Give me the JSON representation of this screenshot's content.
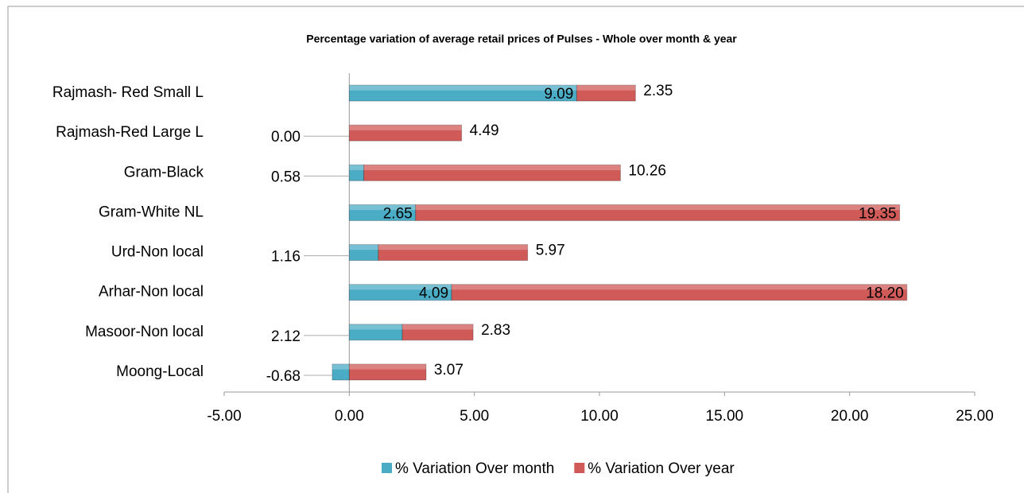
{
  "chart_data": {
    "type": "stacked-barh",
    "title": "Percentage variation  of average retail prices of Pulses - Whole over month & year",
    "categories": [
      "Rajmash- Red Small L",
      "Rajmash-Red Large L",
      "Gram-Black",
      "Gram-White NL",
      "Urd-Non local",
      "Arhar-Non local",
      "Masoor-Non local",
      "Moong-Local"
    ],
    "series": [
      {
        "name": "% Variation Over month",
        "color": "#4bacc6",
        "values": [
          9.09,
          0,
          0.58,
          2.65,
          1.16,
          4.09,
          2.12,
          -0.68
        ],
        "value_labels": [
          "9.09",
          "0.00",
          "0.58",
          "2.65",
          "1.16",
          "4.09",
          "2.12",
          "-0.68"
        ]
      },
      {
        "name": "% Variation Over year",
        "color": "#d05a57",
        "values": [
          2.35,
          4.49,
          10.26,
          19.35,
          5.97,
          18.2,
          2.83,
          3.07
        ],
        "value_labels": [
          "2.35",
          "4.49",
          "10.26",
          "19.35",
          "5.97",
          "18.20",
          "2.83",
          "3.07"
        ]
      }
    ],
    "xlim": [
      -5,
      25
    ],
    "xticks": [
      {
        "value": -5,
        "label": "-5.00"
      },
      {
        "value": 0,
        "label": "0.00"
      },
      {
        "value": 5,
        "label": "5.00"
      },
      {
        "value": 10,
        "label": "10.00"
      },
      {
        "value": 15,
        "label": "15.00"
      },
      {
        "value": 20,
        "label": "20.00"
      },
      {
        "value": 25,
        "label": "25.00"
      }
    ],
    "legend": "bottom"
  }
}
